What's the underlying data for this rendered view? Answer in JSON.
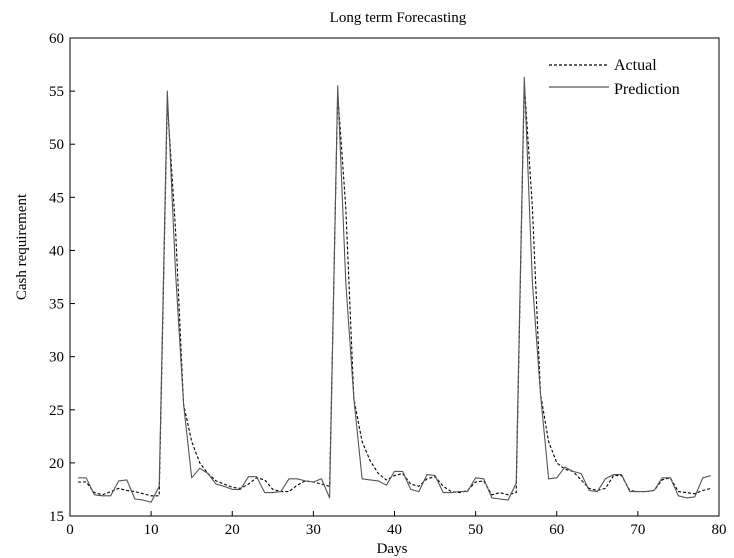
{
  "chart_data": {
    "type": "line",
    "title": "Long term Forecasting",
    "xlabel": "Days",
    "ylabel": "Cash requirement",
    "xlim": [
      0,
      80
    ],
    "ylim": [
      15,
      60
    ],
    "x_ticks": [
      "0",
      "10",
      "20",
      "30",
      "40",
      "50",
      "60",
      "70",
      "80"
    ],
    "y_ticks": [
      "15",
      "20",
      "25",
      "30",
      "35",
      "40",
      "45",
      "50",
      "55",
      "60"
    ],
    "grid": false,
    "legend_position": "top-right",
    "x": [
      1,
      2,
      3,
      4,
      5,
      6,
      7,
      8,
      9,
      10,
      11,
      12,
      13,
      14,
      15,
      16,
      17,
      18,
      19,
      20,
      21,
      22,
      23,
      24,
      25,
      26,
      27,
      28,
      29,
      30,
      31,
      32,
      33,
      34,
      35,
      36,
      37,
      38,
      39,
      40,
      41,
      42,
      43,
      44,
      45,
      46,
      47,
      48,
      49,
      50,
      51,
      52,
      53,
      54,
      55,
      56,
      57,
      58,
      59,
      60,
      61,
      62,
      63,
      64,
      65,
      66,
      67,
      68,
      69,
      70,
      71,
      72,
      73,
      74,
      75,
      76,
      77,
      78,
      79
    ],
    "series": [
      {
        "name": "Actual",
        "style": "dashed",
        "values": [
          18.2,
          18.2,
          17.2,
          17.0,
          17.3,
          17.6,
          17.4,
          17.3,
          17.1,
          16.9,
          16.9,
          54.0,
          42.0,
          25.5,
          22.0,
          20.0,
          19.0,
          18.3,
          18.0,
          17.7,
          17.6,
          18.0,
          18.6,
          18.4,
          17.5,
          17.3,
          17.3,
          17.9,
          18.3,
          18.2,
          18.0,
          17.8,
          54.8,
          44.0,
          26.0,
          22.0,
          20.2,
          19.0,
          18.4,
          18.8,
          19.0,
          18.0,
          17.8,
          18.5,
          18.7,
          17.8,
          17.3,
          17.2,
          17.4,
          18.2,
          18.3,
          17.0,
          17.2,
          17.0,
          17.2,
          55.8,
          44.0,
          26.5,
          22.0,
          20.0,
          19.4,
          19.2,
          18.4,
          17.6,
          17.4,
          17.6,
          18.8,
          18.8,
          17.4,
          17.3,
          17.3,
          17.4,
          18.4,
          18.6,
          17.3,
          17.2,
          17.1,
          17.4,
          17.6
        ]
      },
      {
        "name": "Prediction",
        "style": "solid",
        "values": [
          18.6,
          18.6,
          17.0,
          16.9,
          16.9,
          18.3,
          18.4,
          16.6,
          16.5,
          16.3,
          17.8,
          55.0,
          38.0,
          25.5,
          18.6,
          19.5,
          19.0,
          18.0,
          17.8,
          17.5,
          17.5,
          18.7,
          18.7,
          17.2,
          17.2,
          17.3,
          18.5,
          18.5,
          18.3,
          18.2,
          18.5,
          16.7,
          55.5,
          37.0,
          26.0,
          18.5,
          18.4,
          18.3,
          17.9,
          19.2,
          19.2,
          17.5,
          17.3,
          18.9,
          18.8,
          17.2,
          17.2,
          17.3,
          17.3,
          18.6,
          18.5,
          16.7,
          16.6,
          16.5,
          18.1,
          56.3,
          37.0,
          26.5,
          18.5,
          18.6,
          19.6,
          19.2,
          19.0,
          17.4,
          17.3,
          18.5,
          18.9,
          18.9,
          17.3,
          17.3,
          17.3,
          17.4,
          18.6,
          18.6,
          16.9,
          16.7,
          16.8,
          18.6,
          18.8
        ]
      }
    ]
  }
}
